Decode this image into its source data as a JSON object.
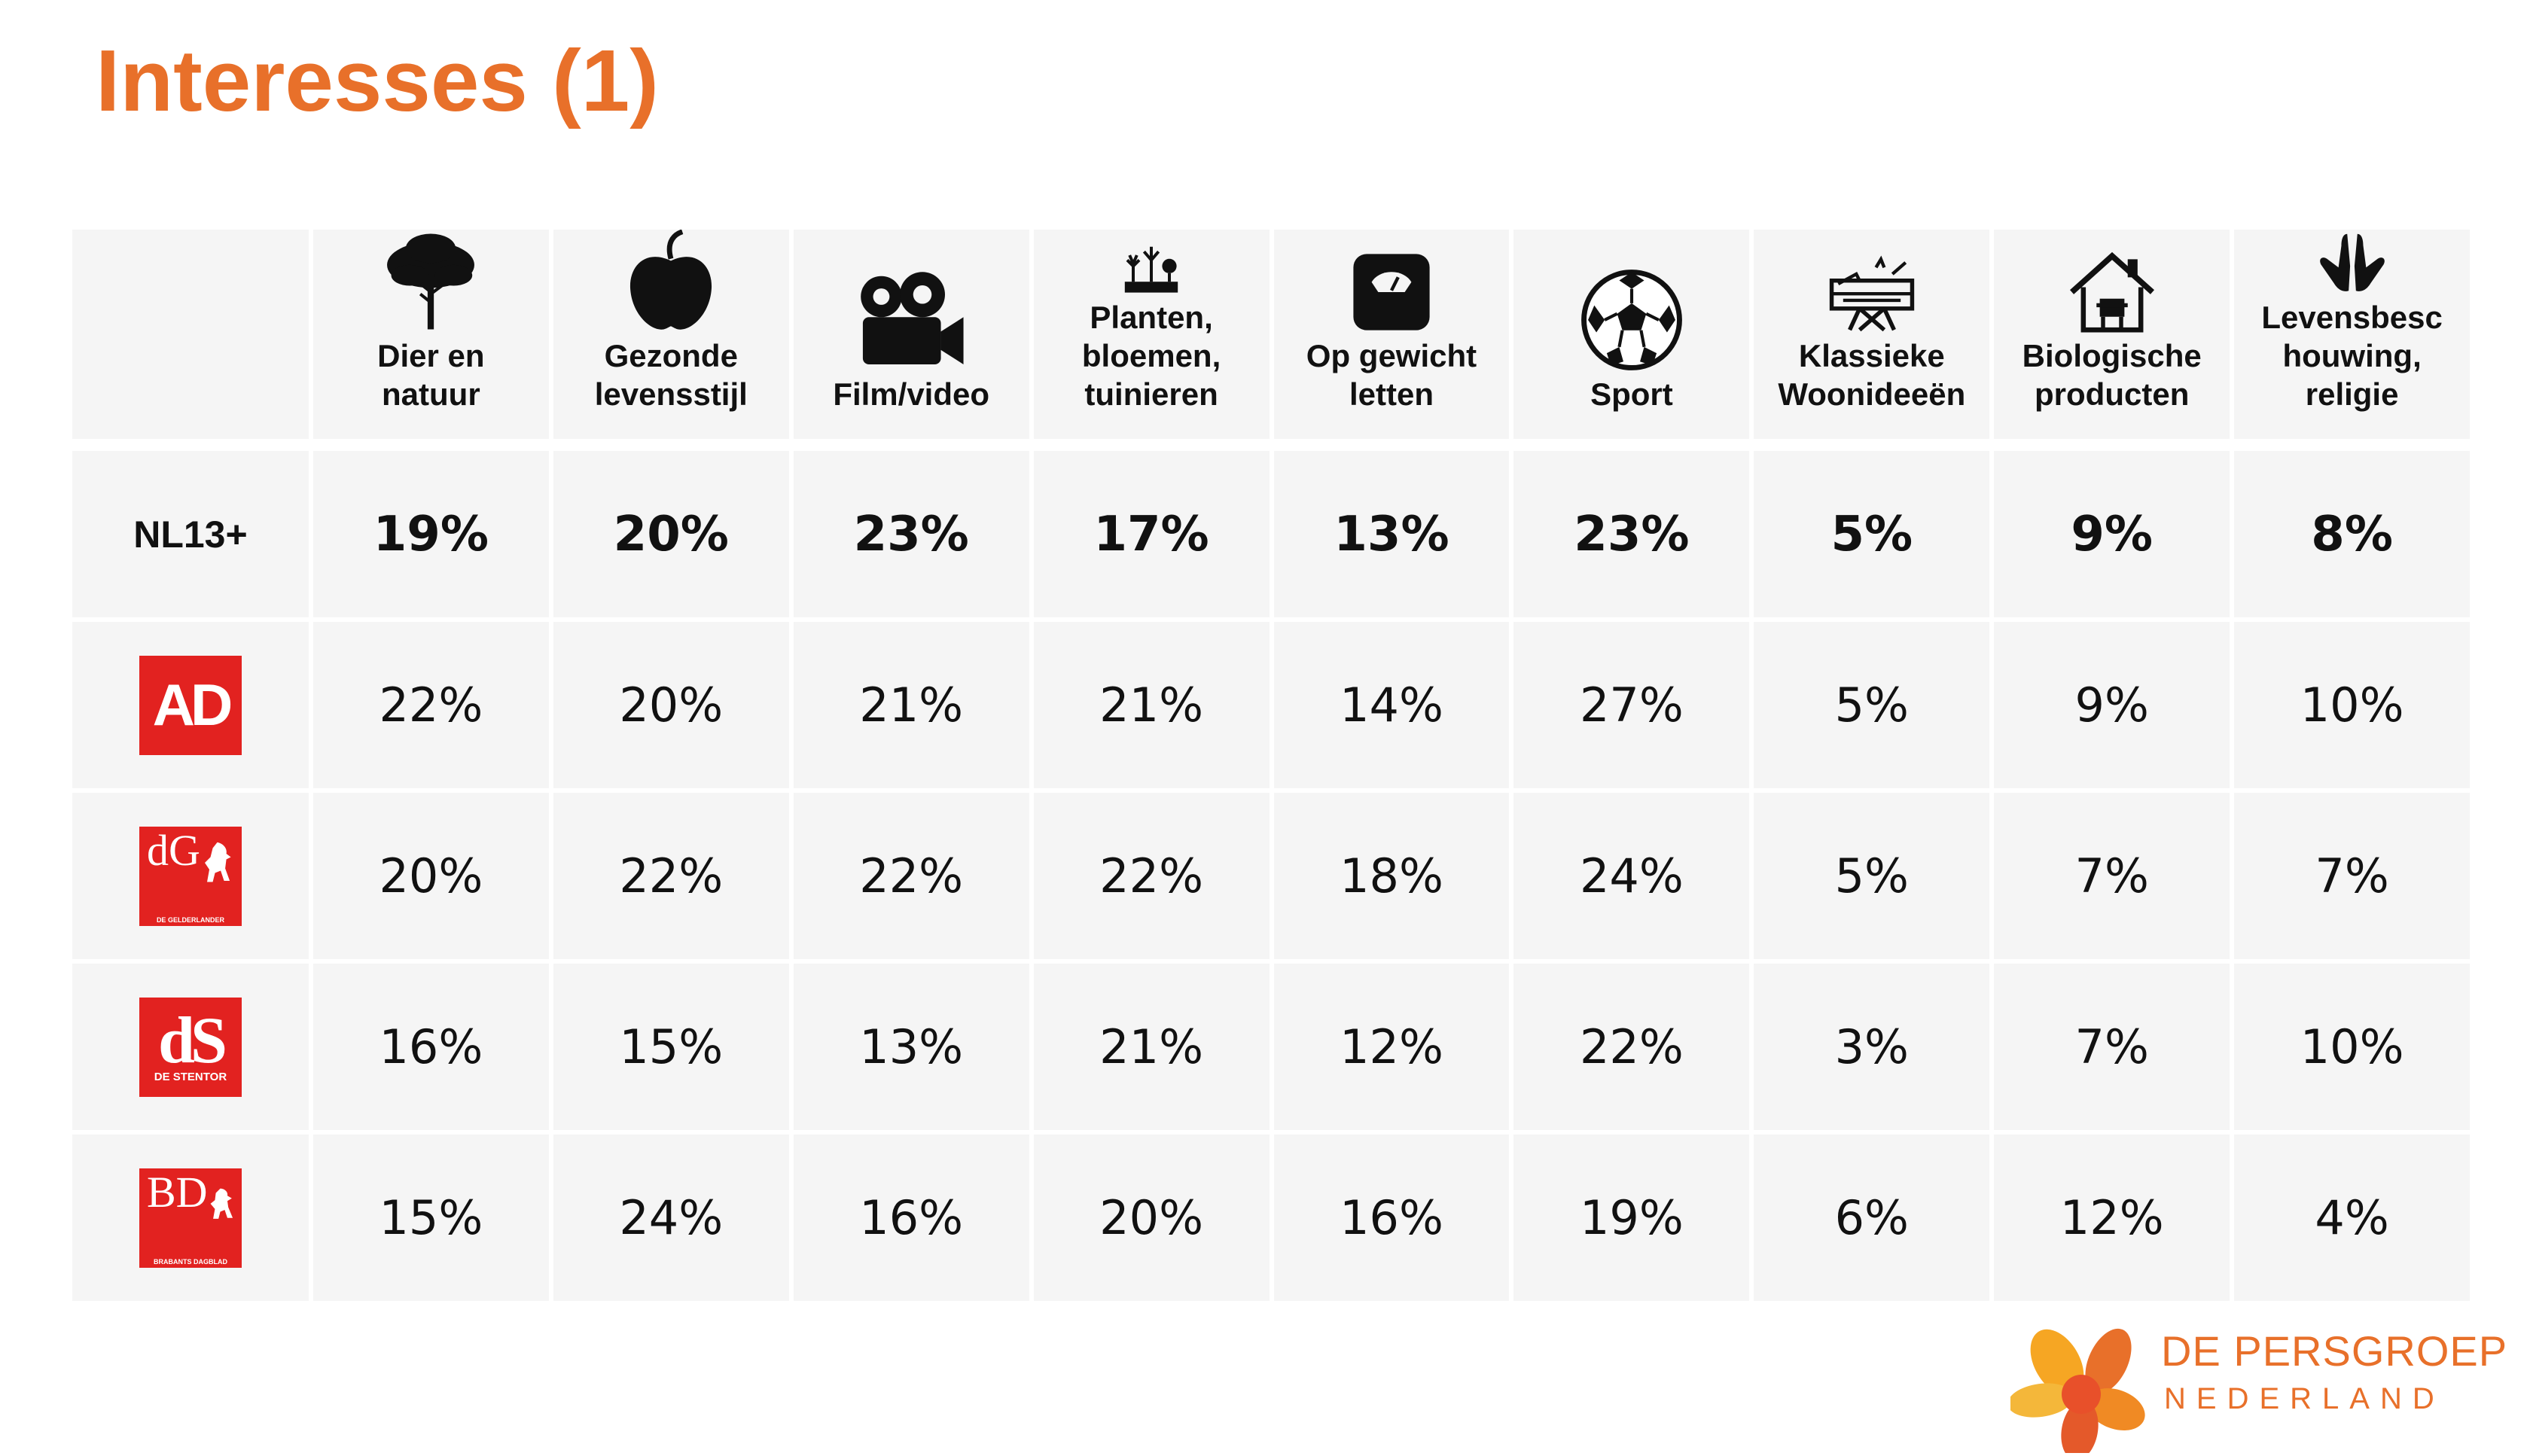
{
  "title": "Interesses (1)",
  "colors": {
    "accent": "#e8702a",
    "logo_red": "#e22220",
    "cell_bg": "#f5f5f5"
  },
  "columns": [
    {
      "label": "Dier en\nnatuur",
      "icon": "tree-icon"
    },
    {
      "label": "Gezonde\nlevensstijl",
      "icon": "apple-icon"
    },
    {
      "label": "Film/video",
      "icon": "video-camera-icon"
    },
    {
      "label": "Planten,\nbloemen,\ntuinieren",
      "icon": "garden-icon"
    },
    {
      "label": "Op gewicht\nletten",
      "icon": "scale-icon"
    },
    {
      "label": "Sport",
      "icon": "soccer-ball-icon"
    },
    {
      "label": "Klassieke\nWoonideeën",
      "icon": "furniture-icon"
    },
    {
      "label": "Biologische\nproducten",
      "icon": "house-icon"
    },
    {
      "label": "Levensbesc\nhouwing,\nreligie",
      "icon": "praying-hands-icon"
    }
  ],
  "rows": [
    {
      "label": "NL13+",
      "bold": true,
      "values": [
        "19%",
        "20%",
        "23%",
        "17%",
        "13%",
        "23%",
        "5%",
        "9%",
        "8%"
      ]
    },
    {
      "logo": "ad",
      "logo_text": "AD",
      "values": [
        "22%",
        "20%",
        "21%",
        "21%",
        "14%",
        "27%",
        "5%",
        "9%",
        "10%"
      ]
    },
    {
      "logo": "dg",
      "logo_letters": "dG",
      "logo_sub": "DE GELDERLANDER",
      "values": [
        "20%",
        "22%",
        "22%",
        "22%",
        "18%",
        "24%",
        "5%",
        "7%",
        "7%"
      ]
    },
    {
      "logo": "ds",
      "logo_text": "dS",
      "logo_sub": "DE STENTOR",
      "values": [
        "16%",
        "15%",
        "13%",
        "21%",
        "12%",
        "22%",
        "3%",
        "7%",
        "10%"
      ]
    },
    {
      "logo": "bd",
      "logo_letters": "BD",
      "logo_sub": "BRABANTS DAGBLAD",
      "values": [
        "15%",
        "24%",
        "16%",
        "20%",
        "16%",
        "19%",
        "6%",
        "12%",
        "4%"
      ]
    }
  ],
  "brand": {
    "line1": "DE PERSGROEP",
    "line2": "NEDERLAND"
  }
}
